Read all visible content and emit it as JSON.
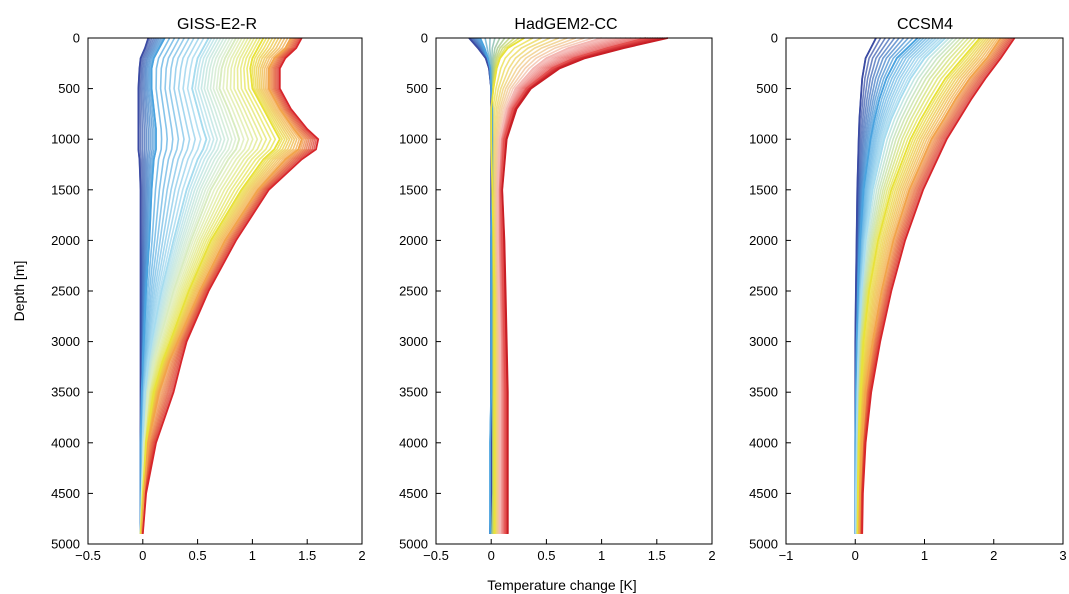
{
  "figure": {
    "ylabel": "Depth [m]",
    "xlabel": "Temperature change [K]"
  },
  "chart_data": [
    {
      "type": "line",
      "title": "GISS-E2-R",
      "xlim": [
        -0.5,
        2
      ],
      "ylim": [
        5000,
        0
      ],
      "x_ticks": [
        "−0.5",
        "0",
        "0.5",
        "1",
        "1.5",
        "2"
      ],
      "x_tick_values": [
        -0.5,
        0,
        0.5,
        1,
        1.5,
        2
      ],
      "y_ticks": [
        "0",
        "500",
        "1000",
        "1500",
        "2000",
        "2500",
        "3000",
        "3500",
        "4000",
        "4500",
        "5000"
      ],
      "y_tick_values": [
        0,
        500,
        1000,
        1500,
        2000,
        2500,
        3000,
        3500,
        4000,
        4500,
        5000
      ],
      "depth": [
        0,
        100,
        200,
        300,
        500,
        700,
        900,
        1000,
        1100,
        1200,
        1500,
        2000,
        2500,
        3000,
        3200,
        3500,
        4000,
        4500,
        4900
      ],
      "series": [
        {
          "color": "#3b4ba3",
          "values": [
            0.05,
            0.02,
            -0.02,
            -0.03,
            -0.04,
            -0.04,
            -0.04,
            -0.04,
            -0.04,
            -0.03,
            -0.02,
            -0.02,
            -0.02,
            -0.02,
            -0.02,
            -0.02,
            -0.02,
            -0.02,
            -0.02
          ]
        },
        {
          "color": "#4aa3df",
          "values": [
            0.2,
            0.15,
            0.1,
            0.08,
            0.08,
            0.1,
            0.12,
            0.12,
            0.12,
            0.1,
            0.08,
            0.06,
            0.03,
            0.01,
            0.0,
            -0.01,
            -0.02,
            -0.02,
            -0.02
          ]
        },
        {
          "color": "#a6dcef",
          "values": [
            0.6,
            0.55,
            0.5,
            0.48,
            0.45,
            0.5,
            0.55,
            0.58,
            0.55,
            0.5,
            0.4,
            0.28,
            0.17,
            0.08,
            0.05,
            0.02,
            0.0,
            -0.01,
            -0.02
          ]
        },
        {
          "color": "#d9ecc0",
          "values": [
            0.85,
            0.8,
            0.75,
            0.72,
            0.7,
            0.78,
            0.85,
            0.88,
            0.85,
            0.78,
            0.62,
            0.44,
            0.28,
            0.15,
            0.1,
            0.05,
            0.01,
            -0.01,
            -0.02
          ]
        },
        {
          "color": "#e8e23a",
          "values": [
            1.1,
            1.05,
            1.0,
            0.98,
            1.0,
            1.1,
            1.2,
            1.25,
            1.2,
            1.1,
            0.9,
            0.62,
            0.42,
            0.25,
            0.18,
            0.1,
            0.03,
            0.0,
            -0.02
          ]
        },
        {
          "color": "#f2a34a",
          "values": [
            1.35,
            1.3,
            1.2,
            1.15,
            1.15,
            1.25,
            1.38,
            1.45,
            1.42,
            1.3,
            1.05,
            0.75,
            0.52,
            0.32,
            0.24,
            0.15,
            0.05,
            0.01,
            -0.01
          ]
        },
        {
          "color": "#d7262b",
          "values": [
            1.45,
            1.4,
            1.3,
            1.25,
            1.25,
            1.35,
            1.5,
            1.6,
            1.58,
            1.45,
            1.15,
            0.85,
            0.6,
            0.4,
            0.35,
            0.28,
            0.12,
            0.03,
            0.0
          ]
        }
      ]
    },
    {
      "type": "line",
      "title": "HadGEM2-CC",
      "xlim": [
        -0.5,
        2
      ],
      "ylim": [
        5000,
        0
      ],
      "x_ticks": [
        "−0.5",
        "0",
        "0.5",
        "1",
        "1.5",
        "2"
      ],
      "x_tick_values": [
        -0.5,
        0,
        0.5,
        1,
        1.5,
        2
      ],
      "y_ticks": [
        "0",
        "500",
        "1000",
        "1500",
        "2000",
        "2500",
        "3000",
        "3500",
        "4000",
        "4500",
        "5000"
      ],
      "y_tick_values": [
        0,
        500,
        1000,
        1500,
        2000,
        2500,
        3000,
        3500,
        4000,
        4500,
        5000
      ],
      "depth": [
        0,
        100,
        200,
        300,
        500,
        700,
        1000,
        1500,
        2000,
        2500,
        3000,
        3500,
        4000,
        4500,
        4900
      ],
      "series": [
        {
          "color": "#3b4ba3",
          "values": [
            -0.2,
            -0.12,
            -0.05,
            -0.02,
            0.0,
            0.0,
            0.0,
            0.0,
            0.0,
            0.0,
            0.0,
            0.0,
            0.0,
            0.0,
            -0.01
          ]
        },
        {
          "color": "#4aa3df",
          "values": [
            -0.1,
            -0.06,
            -0.03,
            -0.01,
            0.0,
            0.01,
            0.01,
            0.01,
            0.0,
            0.0,
            0.0,
            0.0,
            -0.01,
            -0.01,
            -0.01
          ]
        },
        {
          "color": "#e8e23a",
          "values": [
            0.3,
            0.15,
            0.08,
            0.05,
            0.02,
            0.0,
            0.0,
            0.01,
            0.02,
            0.03,
            0.03,
            0.03,
            0.03,
            0.03,
            0.03
          ]
        },
        {
          "color": "#f4b7b3",
          "values": [
            1.0,
            0.7,
            0.5,
            0.38,
            0.22,
            0.14,
            0.08,
            0.06,
            0.06,
            0.07,
            0.08,
            0.08,
            0.08,
            0.08,
            0.08
          ]
        },
        {
          "color": "#e4504f",
          "values": [
            1.4,
            1.05,
            0.75,
            0.55,
            0.32,
            0.2,
            0.12,
            0.09,
            0.1,
            0.11,
            0.12,
            0.13,
            0.13,
            0.13,
            0.13
          ]
        },
        {
          "color": "#c81e25",
          "values": [
            1.6,
            1.2,
            0.85,
            0.62,
            0.36,
            0.23,
            0.14,
            0.1,
            0.12,
            0.13,
            0.14,
            0.15,
            0.15,
            0.15,
            0.15
          ]
        }
      ]
    },
    {
      "type": "line",
      "title": "CCSM4",
      "xlim": [
        -1,
        3
      ],
      "ylim": [
        5000,
        0
      ],
      "x_ticks": [
        "−1",
        "0",
        "1",
        "2",
        "3"
      ],
      "x_tick_values": [
        -1,
        0,
        1,
        2,
        3
      ],
      "y_ticks": [
        "0",
        "500",
        "1000",
        "1500",
        "2000",
        "2500",
        "3000",
        "3500",
        "4000",
        "4500",
        "5000"
      ],
      "y_tick_values": [
        0,
        500,
        1000,
        1500,
        2000,
        2500,
        3000,
        3500,
        4000,
        4500,
        5000
      ],
      "depth": [
        0,
        200,
        400,
        600,
        800,
        1000,
        1500,
        2000,
        2500,
        3000,
        3500,
        4000,
        4500,
        4900
      ],
      "series": [
        {
          "color": "#3b4ba3",
          "values": [
            0.3,
            0.15,
            0.1,
            0.08,
            0.06,
            0.05,
            0.03,
            0.02,
            0.01,
            0.0,
            0.0,
            0.0,
            0.0,
            0.0
          ]
        },
        {
          "color": "#4aa3df",
          "values": [
            0.9,
            0.6,
            0.45,
            0.35,
            0.28,
            0.22,
            0.12,
            0.07,
            0.04,
            0.02,
            0.01,
            0.0,
            0.0,
            0.0
          ]
        },
        {
          "color": "#a6dcef",
          "values": [
            1.3,
            1.0,
            0.8,
            0.65,
            0.52,
            0.42,
            0.25,
            0.15,
            0.09,
            0.05,
            0.03,
            0.02,
            0.01,
            0.01
          ]
        },
        {
          "color": "#e8e23a",
          "values": [
            1.8,
            1.55,
            1.3,
            1.12,
            0.95,
            0.8,
            0.52,
            0.33,
            0.2,
            0.12,
            0.08,
            0.05,
            0.04,
            0.03
          ]
        },
        {
          "color": "#f2a34a",
          "values": [
            2.1,
            1.9,
            1.65,
            1.45,
            1.28,
            1.1,
            0.78,
            0.55,
            0.38,
            0.25,
            0.15,
            0.1,
            0.07,
            0.06
          ]
        },
        {
          "color": "#d7262b",
          "values": [
            2.3,
            2.1,
            1.88,
            1.68,
            1.5,
            1.32,
            0.98,
            0.72,
            0.52,
            0.36,
            0.23,
            0.15,
            0.11,
            0.1
          ]
        }
      ]
    }
  ]
}
